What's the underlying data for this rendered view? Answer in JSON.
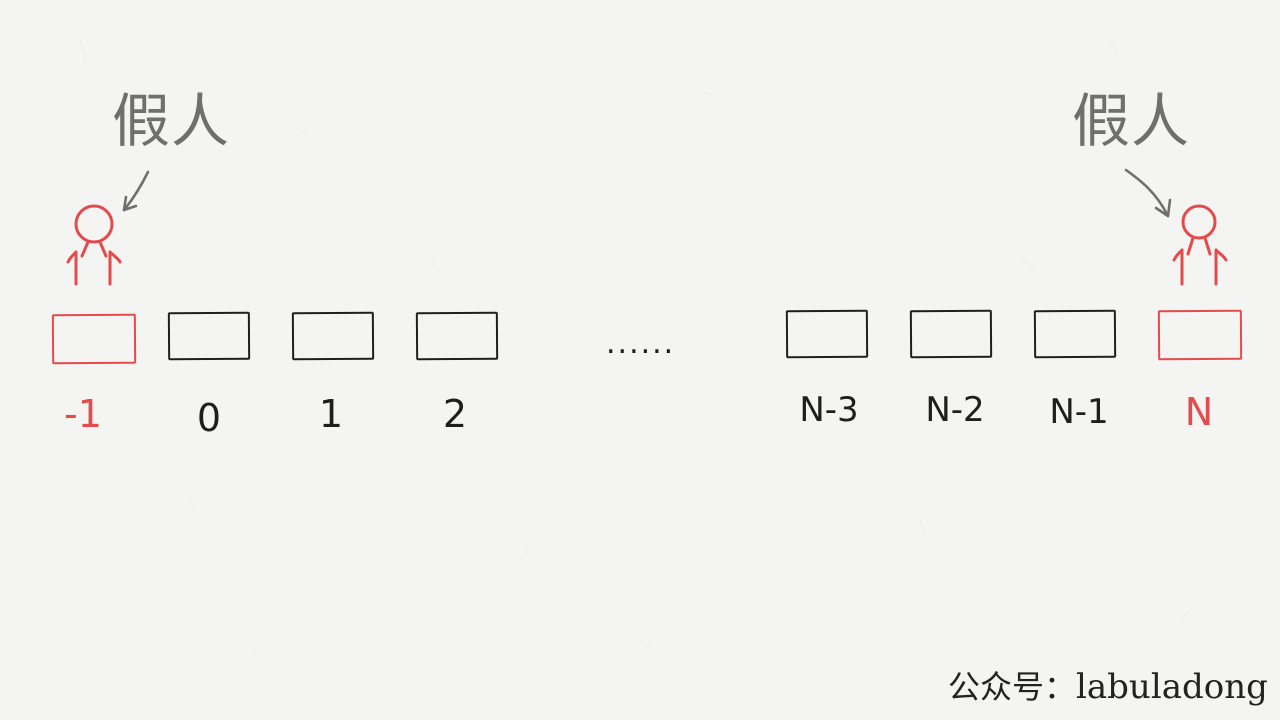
{
  "labels": {
    "left_fake": "假人",
    "right_fake": "假人"
  },
  "indices": {
    "neg1": "-1",
    "i0": "0",
    "i1": "1",
    "i2": "2",
    "n3": "N-3",
    "n2": "N-2",
    "n1": "N-1",
    "n": "N"
  },
  "ellipsis": "......",
  "watermark": {
    "prefix": "公众号：",
    "name": "labuladong"
  },
  "colors": {
    "red": "#e44b4b",
    "black": "#1f1f1f",
    "gray": "#6f6f6f",
    "background": "#f4f4f3"
  }
}
